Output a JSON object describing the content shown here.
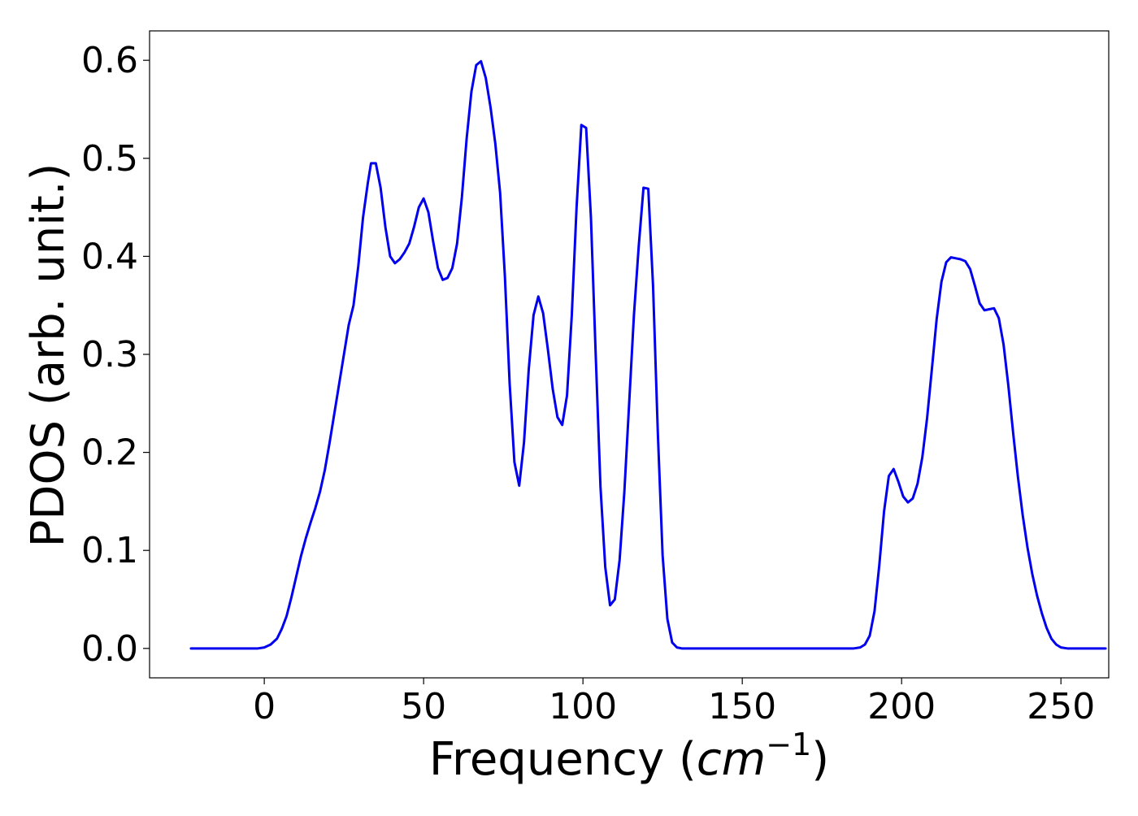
{
  "chart_data": {
    "type": "line",
    "title": "",
    "xlabel_prefix": "Frequency (",
    "xlabel_unit": "cm",
    "xlabel_exponent": "−1",
    "xlabel_suffix": ")",
    "ylabel": "PDOS (arb. unit.)",
    "xlim": [
      -36,
      265
    ],
    "ylim": [
      -0.03,
      0.63
    ],
    "x_ticks": [
      0,
      50,
      100,
      150,
      200,
      250
    ],
    "x_tick_labels": [
      "0",
      "50",
      "100",
      "150",
      "200",
      "250"
    ],
    "y_ticks": [
      0.0,
      0.1,
      0.2,
      0.3,
      0.4,
      0.5,
      0.6
    ],
    "y_tick_labels": [
      "0.0",
      "0.1",
      "0.2",
      "0.3",
      "0.4",
      "0.5",
      "0.6"
    ],
    "grid": false,
    "legend": "none",
    "series": [
      {
        "color": "#0000ee",
        "points": [
          [
            -23,
            0.0
          ],
          [
            -10,
            0.0
          ],
          [
            -2,
            0.0
          ],
          [
            0,
            0.001
          ],
          [
            2,
            0.004
          ],
          [
            4,
            0.01
          ],
          [
            5.5,
            0.02
          ],
          [
            7,
            0.033
          ],
          [
            8.5,
            0.052
          ],
          [
            10,
            0.073
          ],
          [
            11.5,
            0.094
          ],
          [
            13,
            0.112
          ],
          [
            14.5,
            0.128
          ],
          [
            16,
            0.143
          ],
          [
            17.5,
            0.16
          ],
          [
            19,
            0.182
          ],
          [
            20.5,
            0.21
          ],
          [
            22,
            0.24
          ],
          [
            23.5,
            0.27
          ],
          [
            25,
            0.3
          ],
          [
            26.5,
            0.33
          ],
          [
            28,
            0.35
          ],
          [
            29.5,
            0.39
          ],
          [
            31,
            0.44
          ],
          [
            32.5,
            0.475
          ],
          [
            33.5,
            0.495
          ],
          [
            35,
            0.495
          ],
          [
            36.5,
            0.47
          ],
          [
            38,
            0.43
          ],
          [
            39.5,
            0.4
          ],
          [
            41,
            0.393
          ],
          [
            42.5,
            0.397
          ],
          [
            44,
            0.404
          ],
          [
            45.5,
            0.413
          ],
          [
            47,
            0.43
          ],
          [
            48.5,
            0.45
          ],
          [
            50,
            0.459
          ],
          [
            51.5,
            0.445
          ],
          [
            53,
            0.415
          ],
          [
            54.5,
            0.388
          ],
          [
            56,
            0.376
          ],
          [
            57.5,
            0.378
          ],
          [
            59,
            0.388
          ],
          [
            60.5,
            0.413
          ],
          [
            62,
            0.46
          ],
          [
            63.5,
            0.52
          ],
          [
            65,
            0.568
          ],
          [
            66.5,
            0.595
          ],
          [
            68,
            0.599
          ],
          [
            69.5,
            0.582
          ],
          [
            71,
            0.552
          ],
          [
            72.5,
            0.515
          ],
          [
            74,
            0.465
          ],
          [
            75.5,
            0.38
          ],
          [
            77,
            0.27
          ],
          [
            78.5,
            0.19
          ],
          [
            80,
            0.166
          ],
          [
            81.5,
            0.21
          ],
          [
            83,
            0.285
          ],
          [
            84.5,
            0.34
          ],
          [
            86,
            0.359
          ],
          [
            87.5,
            0.342
          ],
          [
            89,
            0.305
          ],
          [
            90.5,
            0.265
          ],
          [
            92,
            0.236
          ],
          [
            93.5,
            0.228
          ],
          [
            95,
            0.258
          ],
          [
            96.5,
            0.34
          ],
          [
            98,
            0.45
          ],
          [
            99.5,
            0.534
          ],
          [
            101,
            0.531
          ],
          [
            102.5,
            0.44
          ],
          [
            104,
            0.3
          ],
          [
            105.5,
            0.165
          ],
          [
            107,
            0.083
          ],
          [
            108.5,
            0.044
          ],
          [
            110,
            0.05
          ],
          [
            111.5,
            0.09
          ],
          [
            113,
            0.16
          ],
          [
            114.5,
            0.25
          ],
          [
            116,
            0.34
          ],
          [
            117.5,
            0.41
          ],
          [
            119,
            0.47
          ],
          [
            120.5,
            0.469
          ],
          [
            122,
            0.37
          ],
          [
            123.5,
            0.22
          ],
          [
            125,
            0.095
          ],
          [
            126.5,
            0.03
          ],
          [
            128,
            0.006
          ],
          [
            129.5,
            0.001
          ],
          [
            131,
            0.0
          ],
          [
            150,
            0.0
          ],
          [
            170,
            0.0
          ],
          [
            185,
            0.0
          ],
          [
            187,
            0.001
          ],
          [
            188.5,
            0.004
          ],
          [
            190,
            0.013
          ],
          [
            191.5,
            0.038
          ],
          [
            193,
            0.085
          ],
          [
            194.5,
            0.14
          ],
          [
            196,
            0.176
          ],
          [
            197.5,
            0.183
          ],
          [
            199,
            0.17
          ],
          [
            200.5,
            0.155
          ],
          [
            202,
            0.149
          ],
          [
            203.5,
            0.153
          ],
          [
            205,
            0.168
          ],
          [
            206.5,
            0.195
          ],
          [
            208,
            0.235
          ],
          [
            209.5,
            0.285
          ],
          [
            211,
            0.336
          ],
          [
            212.5,
            0.374
          ],
          [
            214,
            0.394
          ],
          [
            215.5,
            0.399
          ],
          [
            217,
            0.398
          ],
          [
            218.5,
            0.397
          ],
          [
            220,
            0.395
          ],
          [
            221.5,
            0.387
          ],
          [
            223,
            0.37
          ],
          [
            224.5,
            0.352
          ],
          [
            226,
            0.345
          ],
          [
            227.5,
            0.346
          ],
          [
            229,
            0.347
          ],
          [
            230.5,
            0.337
          ],
          [
            232,
            0.31
          ],
          [
            233.5,
            0.268
          ],
          [
            235,
            0.22
          ],
          [
            236.5,
            0.175
          ],
          [
            238,
            0.136
          ],
          [
            239.5,
            0.103
          ],
          [
            241,
            0.076
          ],
          [
            242.5,
            0.054
          ],
          [
            244,
            0.036
          ],
          [
            245.5,
            0.021
          ],
          [
            247,
            0.01
          ],
          [
            248.5,
            0.004
          ],
          [
            250,
            0.001
          ],
          [
            252,
            0.0
          ],
          [
            258,
            0.0
          ],
          [
            264,
            0.0
          ]
        ]
      }
    ]
  }
}
